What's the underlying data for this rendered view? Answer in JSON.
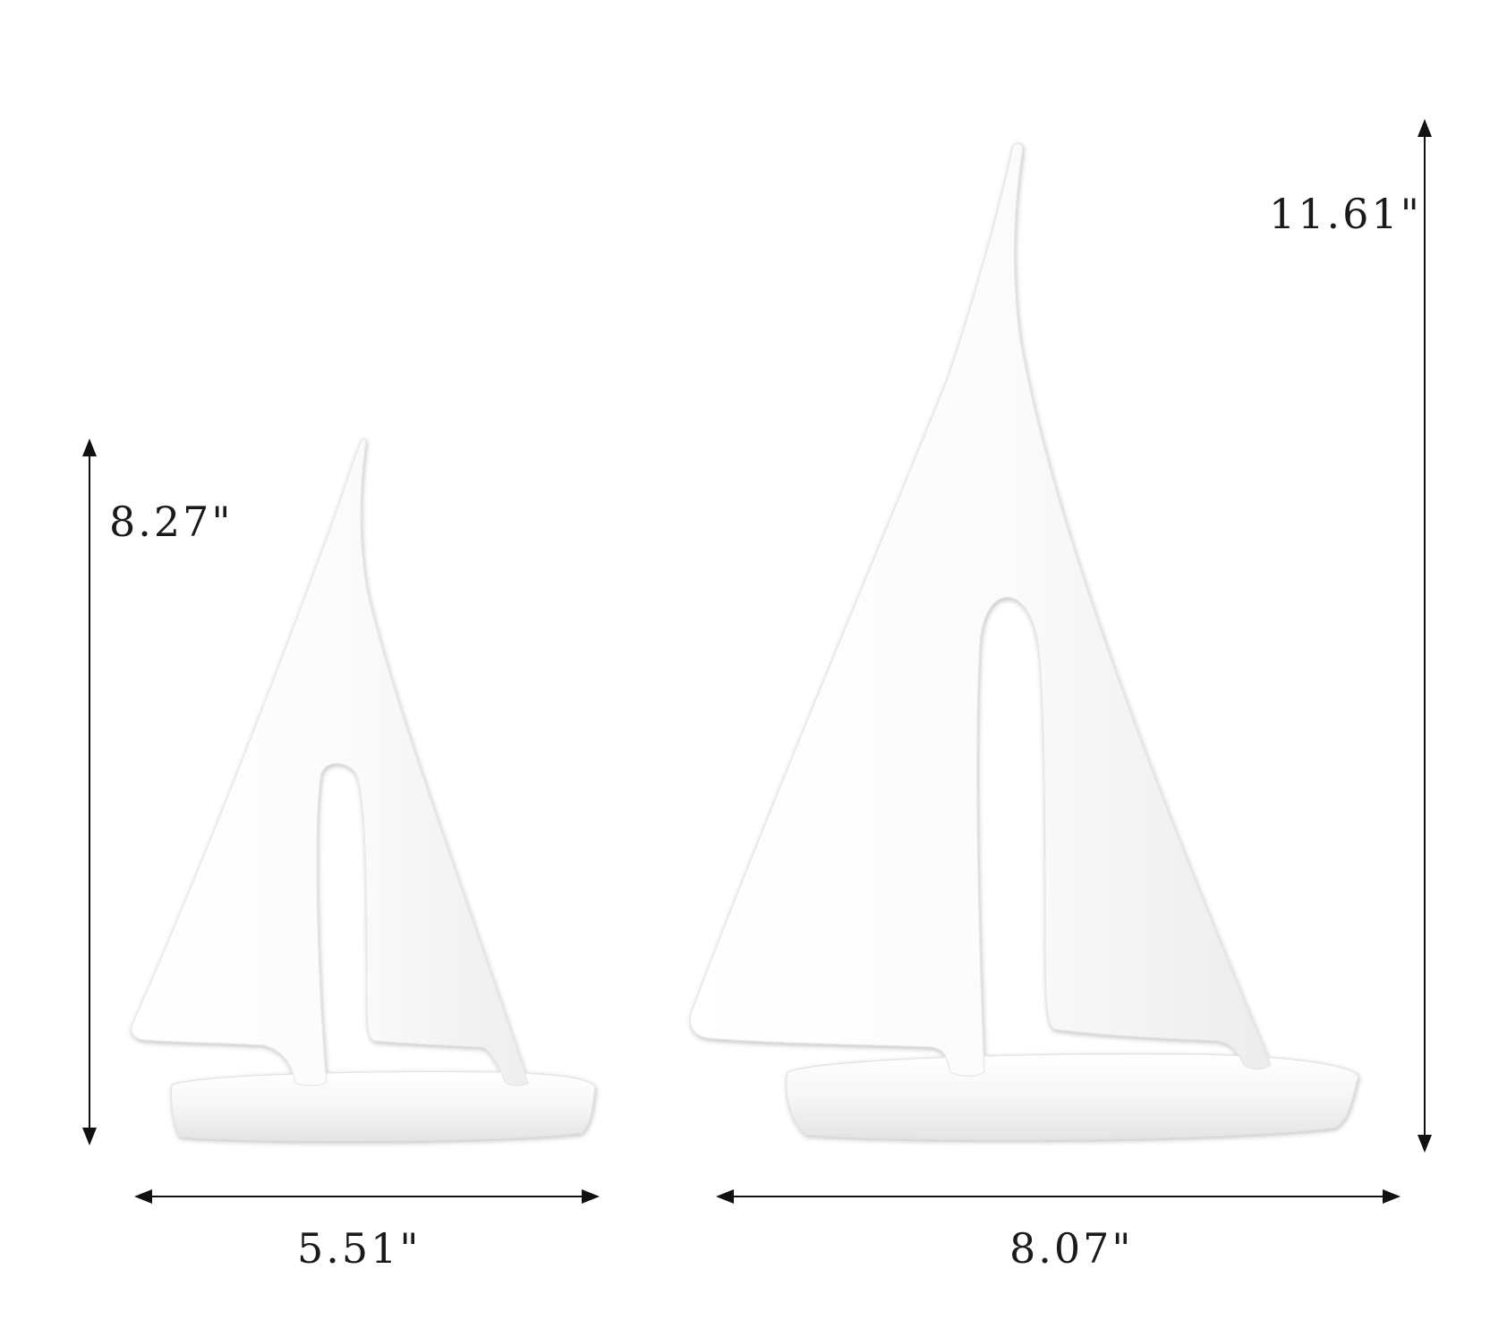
{
  "product_photo": {
    "description_free": true,
    "background_color": "#ffffff",
    "object_color": "#ffffff",
    "shadow_color": "#d9d9d9",
    "arrow_color": "#111111"
  },
  "small_boat": {
    "height_label": "8.27\"",
    "width_label": "5.51\""
  },
  "large_boat": {
    "height_label": "11.61\"",
    "width_label": "8.07\""
  }
}
